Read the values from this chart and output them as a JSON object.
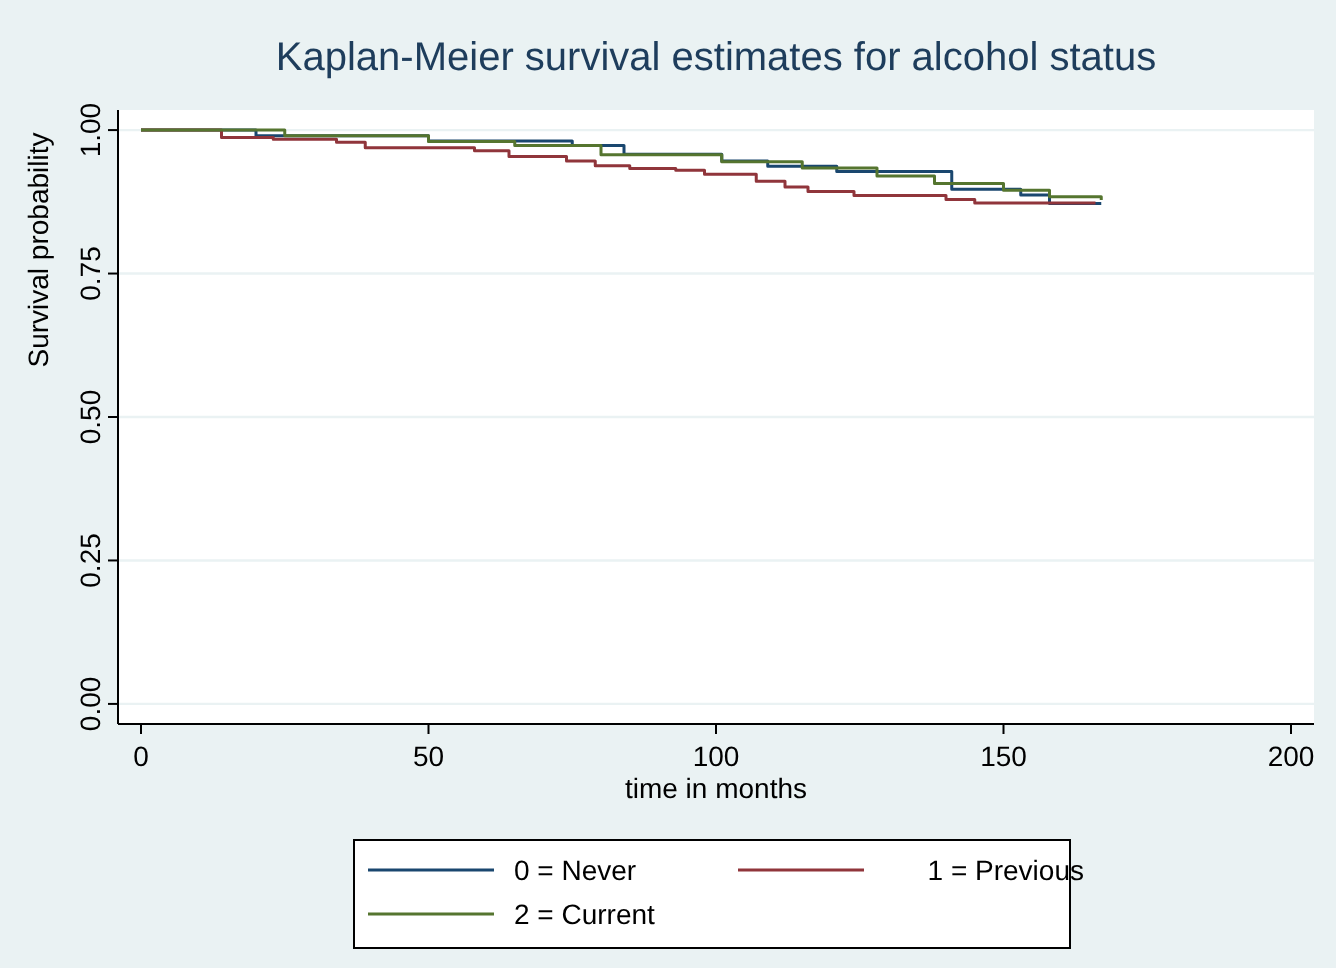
{
  "chart_data": {
    "type": "step",
    "title": "Kaplan-Meier survival estimates for alcohol status",
    "xlabel": "time in months",
    "ylabel": "Survival probability",
    "xlim": [
      -4,
      204
    ],
    "ylim": [
      -0.035,
      1.035
    ],
    "xticks": [
      0,
      50,
      100,
      150,
      200
    ],
    "yticks": [
      {
        "value": 0,
        "label": "0.00"
      },
      {
        "value": 0.25,
        "label": "0.25"
      },
      {
        "value": 0.5,
        "label": "0.50"
      },
      {
        "value": 0.75,
        "label": "0.75"
      },
      {
        "value": 1,
        "label": "1.00"
      }
    ],
    "grid": "y",
    "legend": "bottom",
    "line_style": "solid",
    "marker": "none",
    "series": [
      {
        "name": "0 = Never",
        "color": "#1a476f",
        "x": [
          0,
          20,
          50,
          75,
          84,
          101,
          109,
          121,
          141,
          153,
          158,
          167
        ],
        "values": [
          1,
          0.99,
          0.981,
          0.973,
          0.958,
          0.946,
          0.937,
          0.928,
          0.897,
          0.887,
          0.872,
          0.872
        ]
      },
      {
        "name": "1 = Previous",
        "color": "#90353b",
        "x": [
          0,
          14,
          23,
          34,
          39,
          58,
          64,
          74,
          79,
          85,
          93,
          98,
          107,
          112,
          116,
          124,
          140,
          145,
          166
        ],
        "values": [
          1,
          0.987,
          0.984,
          0.979,
          0.969,
          0.964,
          0.954,
          0.946,
          0.938,
          0.933,
          0.93,
          0.923,
          0.911,
          0.901,
          0.893,
          0.886,
          0.879,
          0.873,
          0.873
        ]
      },
      {
        "name": "2 = Current",
        "color": "#55752f",
        "x": [
          0,
          25,
          50,
          65,
          80,
          101,
          115,
          128,
          138,
          150,
          158,
          167
        ],
        "values": [
          1,
          0.99,
          0.98,
          0.973,
          0.957,
          0.945,
          0.934,
          0.92,
          0.907,
          0.895,
          0.884,
          0.878
        ]
      }
    ]
  }
}
